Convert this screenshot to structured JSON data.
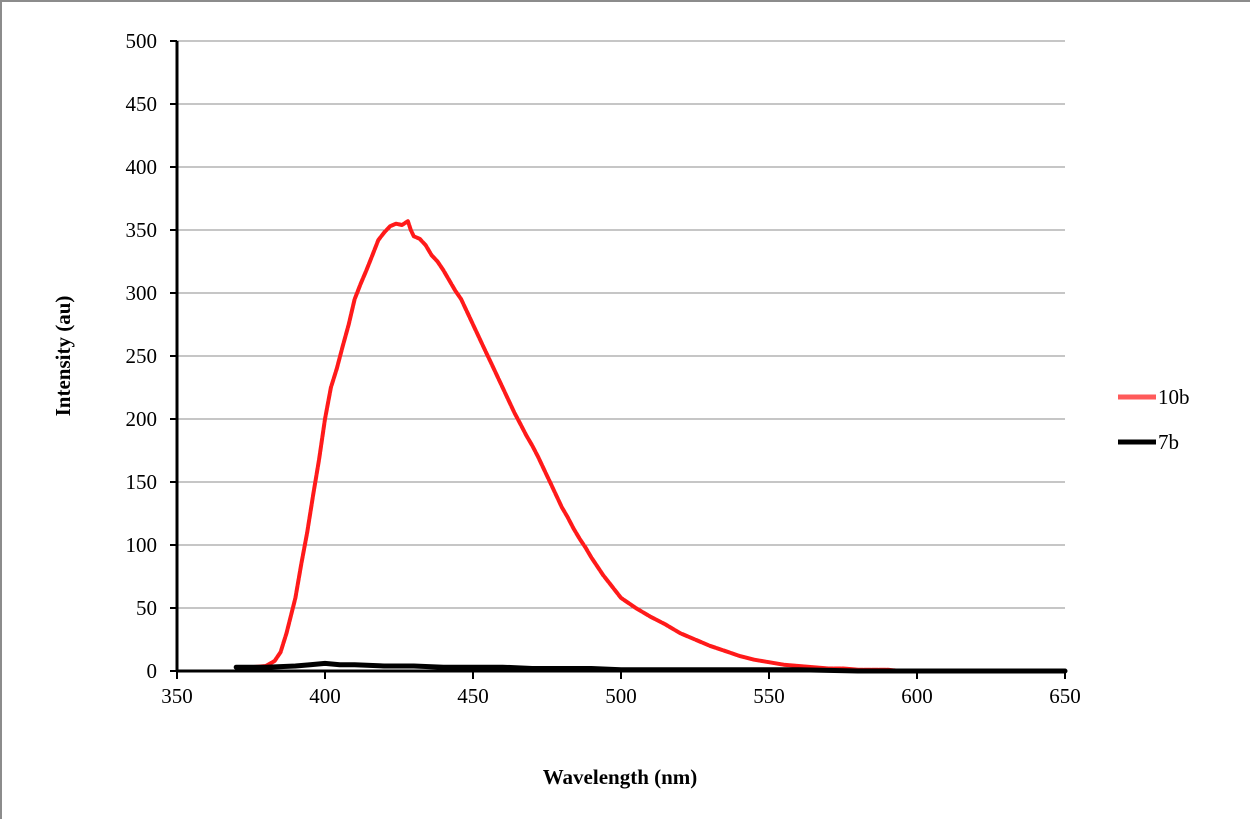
{
  "chart_data": {
    "type": "line",
    "title": "",
    "xlabel": "Wavelength (nm)",
    "ylabel": "Intensity (au)",
    "xlim": [
      350,
      650
    ],
    "ylim": [
      0,
      500
    ],
    "x_ticks": [
      350,
      400,
      450,
      500,
      550,
      600,
      650
    ],
    "y_ticks": [
      0,
      50,
      100,
      150,
      200,
      250,
      300,
      350,
      400,
      450,
      500
    ],
    "grid": "horizontal",
    "legend_position": "right",
    "series": [
      {
        "name": "10b",
        "color": "#ff1a1a",
        "legend_color": "#ff5a5a",
        "x": [
          370,
          375,
          380,
          383,
          385,
          387,
          390,
          392,
          394,
          396,
          398,
          400,
          402,
          404,
          406,
          408,
          410,
          412,
          414,
          416,
          418,
          420,
          422,
          424,
          426,
          428,
          429,
          430,
          432,
          434,
          436,
          438,
          440,
          442,
          444,
          446,
          448,
          450,
          452,
          454,
          456,
          458,
          460,
          462,
          464,
          466,
          468,
          470,
          472,
          474,
          476,
          478,
          480,
          482,
          484,
          486,
          488,
          490,
          492,
          494,
          496,
          498,
          500,
          505,
          510,
          515,
          520,
          525,
          530,
          535,
          540,
          545,
          550,
          555,
          560,
          565,
          570,
          575,
          580,
          585,
          590,
          595,
          600,
          605,
          610,
          615,
          620,
          630,
          640,
          650
        ],
        "y": [
          3,
          3,
          4,
          8,
          15,
          30,
          58,
          85,
          110,
          140,
          168,
          200,
          225,
          240,
          258,
          275,
          295,
          307,
          318,
          330,
          342,
          348,
          353,
          355,
          354,
          357,
          350,
          345,
          343,
          338,
          330,
          325,
          318,
          310,
          302,
          295,
          285,
          275,
          265,
          255,
          245,
          235,
          225,
          215,
          205,
          196,
          187,
          179,
          170,
          160,
          150,
          140,
          130,
          122,
          113,
          105,
          98,
          90,
          83,
          76,
          70,
          64,
          58,
          50,
          43,
          37,
          30,
          25,
          20,
          16,
          12,
          9,
          7,
          5,
          4,
          3,
          2,
          2,
          1,
          1,
          1,
          0,
          0,
          0,
          0,
          0,
          0,
          0,
          0,
          0
        ]
      },
      {
        "name": "7b",
        "color": "#000000",
        "legend_color": "#000000",
        "x": [
          370,
          380,
          390,
          395,
          400,
          405,
          410,
          420,
          430,
          440,
          450,
          460,
          470,
          480,
          490,
          500,
          520,
          540,
          560,
          580,
          600,
          620,
          650
        ],
        "y": [
          3,
          3,
          4,
          5,
          6,
          5,
          5,
          4,
          4,
          3,
          3,
          3,
          2,
          2,
          2,
          1,
          1,
          1,
          1,
          0,
          0,
          0,
          0
        ]
      }
    ]
  }
}
